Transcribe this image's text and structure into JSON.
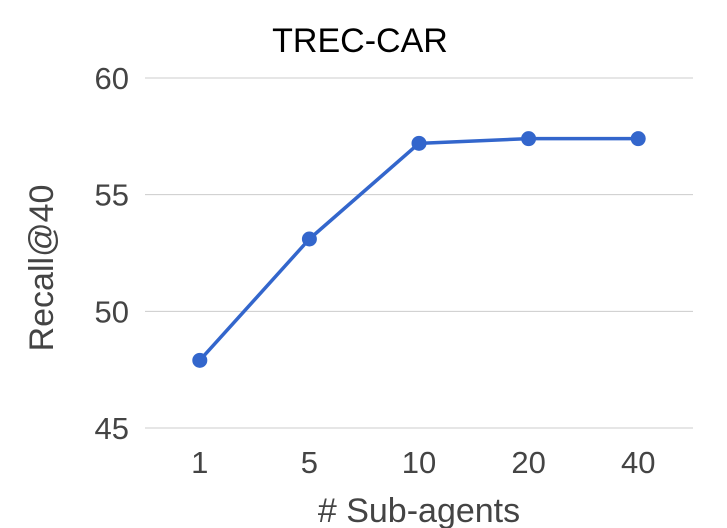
{
  "chart_data": {
    "type": "line",
    "title": "TREC-CAR",
    "xlabel": "# Sub-agents",
    "ylabel": "Recall@40",
    "categories": [
      "1",
      "5",
      "10",
      "20",
      "40"
    ],
    "series": [
      {
        "values": [
          47.9,
          53.1,
          57.2,
          57.4,
          57.4
        ],
        "color": "#3366cc"
      }
    ],
    "ylim": [
      45,
      60
    ],
    "yticks": [
      "45",
      "50",
      "55",
      "60"
    ],
    "grid": true,
    "legend": "none"
  }
}
